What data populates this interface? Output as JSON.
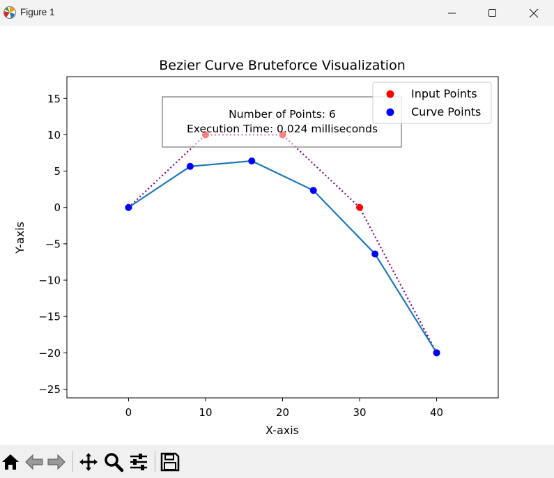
{
  "window": {
    "title": "Figure 1",
    "icon": "matplotlib-icon",
    "controls": [
      "minimize-icon",
      "maximize-icon",
      "close-icon"
    ]
  },
  "toolbar": {
    "buttons": [
      "home-icon",
      "back-icon",
      "forward-icon",
      "pan-icon",
      "zoom-icon",
      "configure-subplots-icon",
      "save-icon"
    ]
  },
  "chart_data": {
    "type": "line",
    "title": "Bezier Curve Bruteforce Visualization",
    "xlabel": "X-axis",
    "ylabel": "Y-axis",
    "xlim": [
      -8,
      48
    ],
    "ylim": [
      -26.2,
      18
    ],
    "xticks": [
      0,
      10,
      20,
      30,
      40
    ],
    "yticks": [
      15,
      10,
      5,
      0,
      -5,
      -10,
      -15,
      -20,
      -25
    ],
    "ytick_labels": [
      "15",
      "10",
      "5",
      "0",
      "−5",
      "−10",
      "−15",
      "−20",
      "−25"
    ],
    "grid": false,
    "legend_position": "upper right",
    "annotation": {
      "lines": [
        "Number of Points: 6",
        "Execution Time: 0.024 milliseconds"
      ]
    },
    "series": [
      {
        "name": "Input Points",
        "style": "scatter + dotted line",
        "color": "#ff0000",
        "line_color": "#800080",
        "x": [
          0,
          10,
          20,
          30,
          40
        ],
        "y": [
          0,
          10,
          10,
          0,
          -20
        ]
      },
      {
        "name": "Curve Points",
        "style": "scatter + solid line",
        "color": "#0000ff",
        "line_color": "#1f77b4",
        "x": [
          0,
          8,
          16,
          24,
          32,
          40
        ],
        "y": [
          0,
          5.65,
          6.4,
          2.35,
          -6.4,
          -20
        ]
      }
    ]
  }
}
